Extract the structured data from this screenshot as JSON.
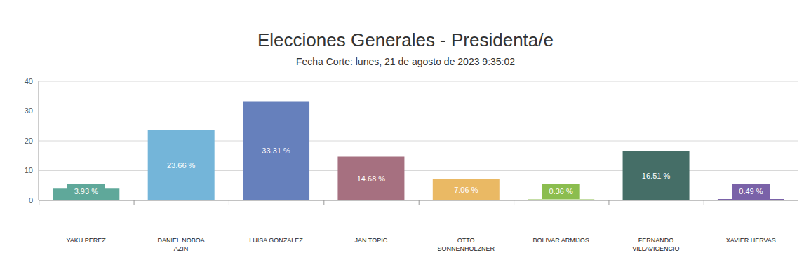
{
  "chart_data": {
    "type": "bar",
    "title": "Elecciones Generales - Presidenta/e",
    "subtitle": "Fecha Corte: lunes, 21 de agosto de 2023 9:35:02",
    "categories": [
      "YAKU PEREZ",
      "DANIEL NOBOA AZIN",
      "LUISA GONZALEZ",
      "JAN TOPIC",
      "OTTO SONNENHOLZNER",
      "BOLIVAR ARMIJOS",
      "FERNANDO VILLAVICENCIO",
      "XAVIER HERVAS"
    ],
    "values": [
      3.93,
      23.66,
      33.31,
      14.68,
      7.06,
      0.36,
      16.51,
      0.49
    ],
    "value_labels": [
      "3.93 %",
      "23.66 %",
      "33.31 %",
      "14.68 %",
      "7.06 %",
      "0.36 %",
      "16.51 %",
      "0.49 %"
    ],
    "colors": [
      "#5fa89a",
      "#74b5d9",
      "#6680bc",
      "#a67080",
      "#eab964",
      "#8bbd4f",
      "#456e67",
      "#7a62a8"
    ],
    "ylim": [
      0,
      40
    ],
    "yticks": [
      0,
      10,
      20,
      30,
      40
    ],
    "grid": true,
    "data_labels": true
  }
}
